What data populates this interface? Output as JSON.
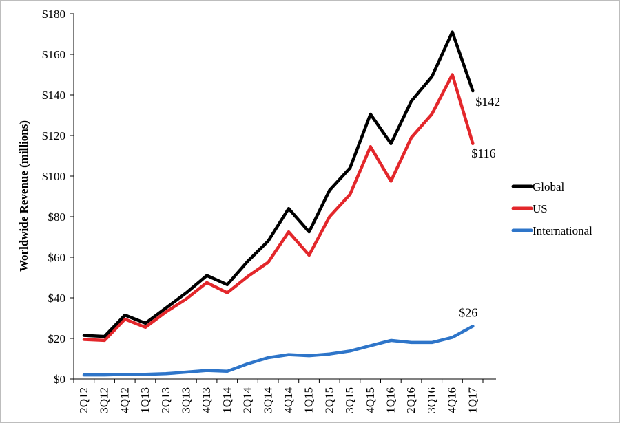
{
  "chart_data": {
    "type": "line",
    "title": "",
    "xlabel": "",
    "ylabel": "Worldwide Revenue (millions)",
    "ylim": [
      0,
      180
    ],
    "yticks": [
      0,
      20,
      40,
      60,
      80,
      100,
      120,
      140,
      160,
      180
    ],
    "ytick_labels": [
      "$0",
      "$20",
      "$40",
      "$60",
      "$80",
      "$100",
      "$120",
      "$140",
      "$160",
      "$180"
    ],
    "categories": [
      "2Q12",
      "3Q12",
      "4Q12",
      "1Q13",
      "2Q13",
      "3Q13",
      "4Q13",
      "1Q14",
      "2Q14",
      "3Q14",
      "4Q14",
      "1Q15",
      "2Q15",
      "3Q15",
      "4Q15",
      "1Q16",
      "2Q16",
      "3Q16",
      "4Q16",
      "1Q17"
    ],
    "series": [
      {
        "name": "Global",
        "color": "#000000",
        "values": [
          21.5,
          21,
          31.5,
          27.5,
          35,
          42.5,
          51,
          46.5,
          58,
          68,
          84,
          72.5,
          93,
          104,
          130.5,
          116,
          137,
          149,
          171,
          142
        ]
      },
      {
        "name": "US",
        "color": "#e3272b",
        "values": [
          19.5,
          19,
          29.5,
          25.5,
          33,
          39.5,
          47.5,
          42.5,
          50.5,
          57.5,
          72.5,
          61,
          80,
          91,
          114.5,
          97.5,
          119,
          130.5,
          150,
          116
        ]
      },
      {
        "name": "International",
        "color": "#2e75c9",
        "values": [
          2,
          2,
          2.3,
          2.3,
          2.6,
          3.4,
          4.2,
          3.8,
          7.5,
          10.5,
          12,
          11.5,
          12.3,
          13.8,
          16.4,
          19,
          18,
          18,
          20.5,
          26
        ]
      }
    ],
    "legend_position": "right",
    "grid": false,
    "annotations": [
      {
        "series": "Global",
        "text": "$142"
      },
      {
        "series": "US",
        "text": "$116"
      },
      {
        "series": "International",
        "text": "$26"
      }
    ]
  }
}
